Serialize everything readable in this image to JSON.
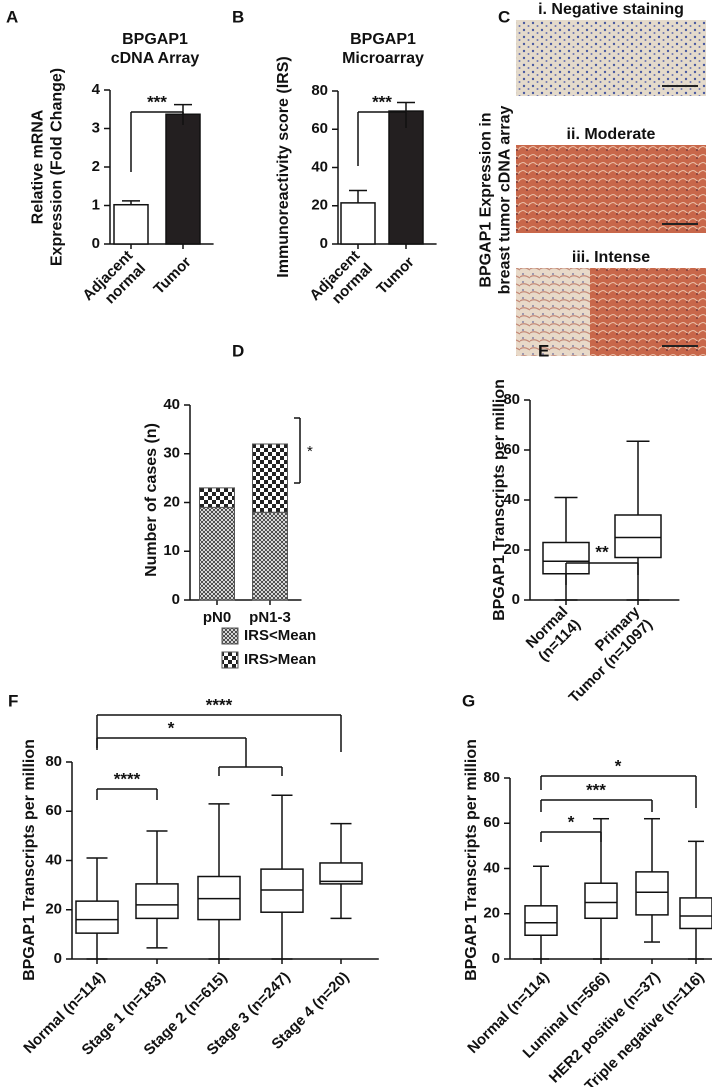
{
  "chart_data": [
    {
      "type": "bar",
      "label": "A",
      "title": "BPGAP1",
      "subtitle": "cDNA Array",
      "y_label": "Relative mRNA Expression (Fold Change)",
      "categories": [
        "Adjacent normal",
        "Tumor"
      ],
      "values": [
        1.02,
        3.37
      ],
      "errors": [
        0.1,
        0.25
      ],
      "colors": [
        "#ffffff",
        "#231f20"
      ],
      "ylim": [
        0,
        4
      ],
      "yticks": [
        0,
        1,
        2,
        3,
        4
      ],
      "annotations": [
        "***"
      ]
    },
    {
      "type": "bar",
      "label": "B",
      "title": "BPGAP1",
      "subtitle": "Microarray",
      "y_label": "Immunoreactivity score (IRS)",
      "categories": [
        "Adjacent normal",
        "Tumor"
      ],
      "values": [
        21.5,
        69.5
      ],
      "errors": [
        6.5,
        4.5
      ],
      "colors": [
        "#ffffff",
        "#231f20"
      ],
      "ylim": [
        0,
        80
      ],
      "yticks": [
        0,
        20,
        40,
        60,
        80
      ],
      "annotations": [
        "***"
      ]
    },
    {
      "type": "images",
      "label": "C",
      "y_label": "BPGAP1 Expression in breast tumor cDNA array",
      "captions": [
        "i. Negative staining",
        "ii. Moderate",
        "iii. Intense"
      ]
    },
    {
      "type": "stacked_bar",
      "label": "D",
      "y_label": "Number of cases (n)",
      "categories": [
        "pN0",
        "pN1-3"
      ],
      "series": [
        {
          "name": "IRS<Mean",
          "values": [
            19,
            18
          ]
        },
        {
          "name": "IRS>Mean",
          "values": [
            4,
            14
          ]
        }
      ],
      "ylim": [
        0,
        40
      ],
      "yticks": [
        0,
        10,
        20,
        30,
        40
      ],
      "annotations": [
        "*"
      ]
    },
    {
      "type": "box",
      "label": "E",
      "y_label": "BPGAP1 Transcripts per million",
      "categories": [
        "Normal (n=114)",
        "Primary Tumor (n=1097)"
      ],
      "min": [
        0,
        0
      ],
      "q1": [
        10.5,
        17
      ],
      "median": [
        15.5,
        25
      ],
      "q3": [
        23,
        34
      ],
      "max": [
        41,
        63.5
      ],
      "ylim": [
        0,
        80
      ],
      "yticks": [
        0,
        20,
        40,
        60,
        80
      ],
      "annotations": [
        "**"
      ]
    },
    {
      "type": "box",
      "label": "F",
      "y_label": "BPGAP1 Transcripts per million",
      "categories": [
        "Normal (n=114)",
        "Stage 1 (n=183)",
        "Stage 2 (n=615)",
        "Stage 3 (n=247)",
        "Stage 4 (n=20)"
      ],
      "min": [
        0,
        4.5,
        0,
        0,
        16.5
      ],
      "q1": [
        10.5,
        16.5,
        16,
        19,
        30.5
      ],
      "median": [
        16,
        22,
        24.5,
        28,
        31.5
      ],
      "q3": [
        23.5,
        30.5,
        33.5,
        36.5,
        39
      ],
      "max": [
        41,
        52,
        63,
        66.5,
        55
      ],
      "ylim": [
        0,
        80
      ],
      "yticks": [
        0,
        20,
        40,
        60,
        80
      ],
      "annotations": [
        "****",
        "*",
        "****"
      ]
    },
    {
      "type": "box",
      "label": "G",
      "y_label": "BPGAP1 Transcripts per million",
      "categories": [
        "Normal (n=114)",
        "Luminal (n=566)",
        "HER2 positive (n=37)",
        "Triple negative (n=116)"
      ],
      "min": [
        0,
        0,
        7.5,
        0
      ],
      "q1": [
        10.5,
        18,
        19.5,
        13.5
      ],
      "median": [
        16,
        25,
        29.5,
        19
      ],
      "q3": [
        23.5,
        33.5,
        38.5,
        27
      ],
      "max": [
        41,
        62,
        62,
        52
      ],
      "ylim": [
        0,
        80
      ],
      "yticks": [
        0,
        20,
        40,
        60,
        80
      ],
      "annotations": [
        "*",
        "***",
        "*"
      ]
    }
  ]
}
